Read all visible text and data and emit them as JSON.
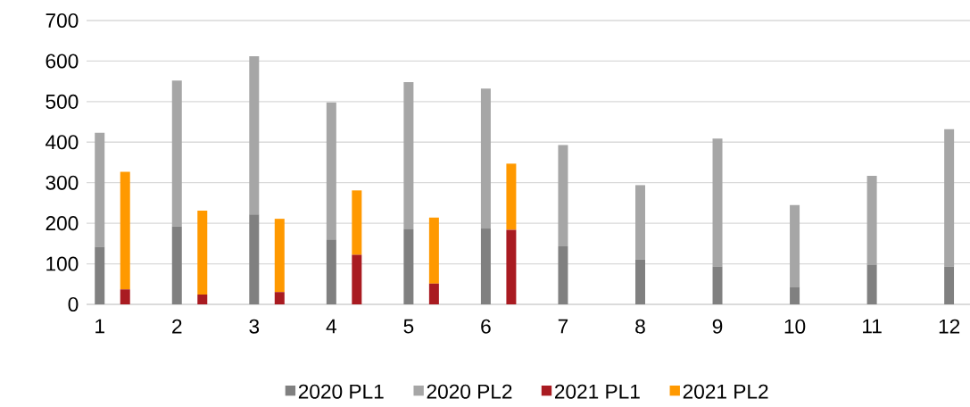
{
  "chart_data": [
    {
      "type": "bar",
      "stacked": true,
      "categories": [
        "1",
        "2",
        "3",
        "4",
        "5",
        "6",
        "7",
        "8",
        "9",
        "10",
        "11",
        "12"
      ],
      "series": [
        {
          "name": "2020 PL1",
          "color": "#808080",
          "values": [
            142,
            192,
            222,
            160,
            185,
            187,
            143,
            111,
            93,
            43,
            98,
            93
          ]
        },
        {
          "name": "2020 PL2",
          "color": "#a6a6a6",
          "values": [
            281,
            360,
            390,
            338,
            363,
            345,
            250,
            183,
            316,
            202,
            219,
            339
          ]
        }
      ],
      "ylim": [
        0,
        700
      ],
      "yticks": [
        0,
        100,
        200,
        300,
        400,
        500,
        600,
        700
      ],
      "grid": "y",
      "legend": "bottom"
    },
    {
      "type": "bar",
      "stacked": true,
      "categories": [
        "1",
        "2",
        "3",
        "4",
        "5",
        "6",
        "7",
        "8",
        "9",
        "10",
        "11",
        "12"
      ],
      "series": [
        {
          "name": "2021 PL1",
          "color": "#a91b21",
          "values": [
            37,
            24,
            30,
            122,
            51,
            184,
            null,
            null,
            null,
            null,
            null,
            null
          ]
        },
        {
          "name": "2021 PL2",
          "color": "#ff9900",
          "values": [
            290,
            207,
            181,
            159,
            163,
            163,
            null,
            null,
            null,
            null,
            null,
            null
          ]
        }
      ],
      "ylim": [
        0,
        700
      ],
      "tick_labels": false,
      "legend": "bottom"
    }
  ]
}
